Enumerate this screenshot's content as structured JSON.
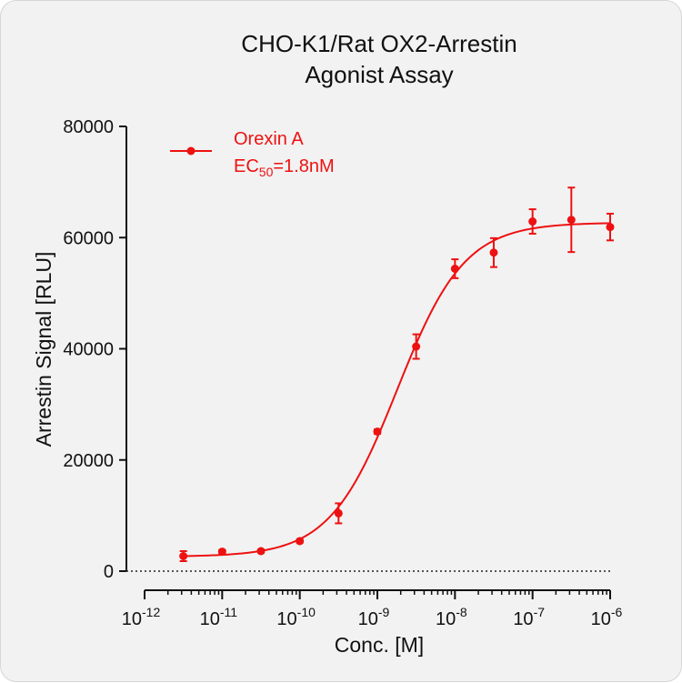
{
  "chart_data": {
    "type": "scatter",
    "title_line1": "CHO-K1/Rat OX2-Arrestin",
    "title_line2": "Agonist Assay",
    "xlabel": "Conc. [M]",
    "ylabel": "Arrestin Signal [RLU]",
    "x_scale": "log",
    "xlim": [
      1e-12,
      1e-06
    ],
    "ylim": [
      0,
      80000
    ],
    "x_ticks": [
      {
        "base": "10",
        "exp": "-12",
        "value": 1e-12
      },
      {
        "base": "10",
        "exp": "-11",
        "value": 1e-11
      },
      {
        "base": "10",
        "exp": "-10",
        "value": 1e-10
      },
      {
        "base": "10",
        "exp": "-9",
        "value": 1e-09
      },
      {
        "base": "10",
        "exp": "-8",
        "value": 1e-08
      },
      {
        "base": "10",
        "exp": "-7",
        "value": 1e-07
      },
      {
        "base": "10",
        "exp": "-6",
        "value": 1e-06
      }
    ],
    "y_ticks": [
      {
        "label": "0",
        "value": 0
      },
      {
        "label": "20000",
        "value": 20000
      },
      {
        "label": "40000",
        "value": 40000
      },
      {
        "label": "60000",
        "value": 60000
      },
      {
        "label": "80000",
        "value": 80000
      }
    ],
    "grid": false,
    "zero_line": "dotted",
    "legend_position": "top-left",
    "series": [
      {
        "name": "Orexin A",
        "ec50_prefix": "EC",
        "ec50_sub": "50",
        "ec50_value": "=1.8nM",
        "color": "#ee1111",
        "x": [
          3.16e-12,
          1e-11,
          3.16e-11,
          1e-10,
          3.16e-10,
          1e-09,
          3.16e-09,
          1e-08,
          3.16e-08,
          1e-07,
          3.16e-07,
          1e-06
        ],
        "y": [
          2700,
          3500,
          3600,
          5400,
          10400,
          25100,
          40400,
          54400,
          57300,
          62900,
          63200,
          61900
        ],
        "err": [
          900,
          300,
          300,
          300,
          1800,
          400,
          2200,
          1700,
          2600,
          2200,
          5800,
          2400
        ],
        "fit": {
          "bottom": 2600,
          "top": 62700,
          "ec50": 1.8e-09,
          "hill": 1.0
        }
      }
    ]
  }
}
